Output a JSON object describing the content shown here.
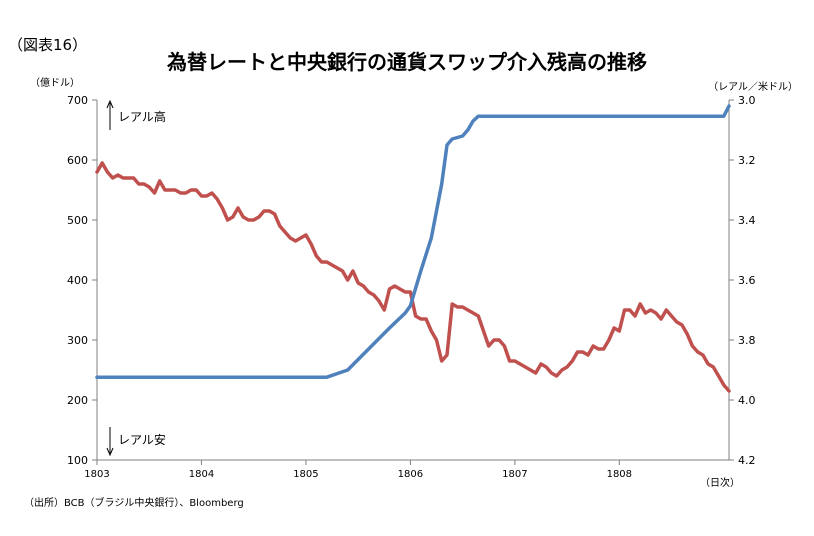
{
  "figure_label": "（図表16）",
  "source_note": "（出所）BCB（ブラジル中央銀行）、Bloomberg",
  "chart_data": {
    "type": "line",
    "title": "為替レートと中央銀行の通貨スワップ介入残高の推移",
    "y_left_unit": "（億ドル）",
    "y_right_unit": "（レアル／米ドル）",
    "x_unit": "（日次）",
    "x_ticks": [
      "1803",
      "1804",
      "1805",
      "1806",
      "1807",
      "1808"
    ],
    "y_left_ticks": [
      "700",
      "600",
      "500",
      "400",
      "300",
      "200",
      "100"
    ],
    "y_right_ticks": [
      "3.0",
      "3.2",
      "3.4",
      "3.6",
      "3.8",
      "4.0",
      "4.2"
    ],
    "ylim_left": [
      100,
      700
    ],
    "ylim_right": [
      3.0,
      4.2
    ],
    "right_axis_inverted": true,
    "annotation_up": "レアル高",
    "annotation_down": "レアル安",
    "legend": "none",
    "grid": false,
    "colors": {
      "swap": "#4f81bd",
      "fx": "#c0504d",
      "axis": "#808080"
    },
    "series": [
      {
        "axis": "left",
        "color": "#4f81bd",
        "x": [
          0,
          2.1,
          2.2,
          2.4,
          2.6,
          2.8,
          2.95,
          3.0,
          3.1,
          3.2,
          3.3,
          3.35,
          3.4,
          3.5,
          3.55,
          3.6,
          3.65,
          3.7,
          3.75,
          3.8,
          6.0,
          6.05
        ],
        "values": [
          238,
          238,
          238,
          250,
          285,
          320,
          345,
          357,
          415,
          470,
          560,
          625,
          635,
          640,
          650,
          665,
          673,
          673,
          673,
          673,
          673,
          690
        ]
      },
      {
        "axis": "right",
        "color": "#c0504d",
        "x": [
          0,
          0.05,
          0.1,
          0.15,
          0.2,
          0.25,
          0.3,
          0.35,
          0.4,
          0.45,
          0.5,
          0.55,
          0.6,
          0.65,
          0.7,
          0.75,
          0.8,
          0.85,
          0.9,
          0.95,
          1.0,
          1.05,
          1.1,
          1.15,
          1.2,
          1.25,
          1.3,
          1.35,
          1.4,
          1.45,
          1.5,
          1.55,
          1.6,
          1.65,
          1.7,
          1.75,
          1.8,
          1.85,
          1.9,
          1.95,
          2.0,
          2.05,
          2.1,
          2.15,
          2.2,
          2.25,
          2.3,
          2.35,
          2.4,
          2.45,
          2.5,
          2.55,
          2.6,
          2.65,
          2.7,
          2.75,
          2.8,
          2.85,
          2.9,
          2.95,
          3.0,
          3.05,
          3.1,
          3.15,
          3.2,
          3.25,
          3.3,
          3.35,
          3.4,
          3.45,
          3.5,
          3.55,
          3.6,
          3.65,
          3.7,
          3.75,
          3.8,
          3.85,
          3.9,
          3.95,
          4.0,
          4.05,
          4.1,
          4.15,
          4.2,
          4.25,
          4.3,
          4.35,
          4.4,
          4.45,
          4.5,
          4.55,
          4.6,
          4.65,
          4.7,
          4.75,
          4.8,
          4.85,
          4.9,
          4.95,
          5.0,
          5.05,
          5.1,
          5.15,
          5.2,
          5.25,
          5.3,
          5.35,
          5.4,
          5.45,
          5.5,
          5.55,
          5.6,
          5.65,
          5.7,
          5.75,
          5.8,
          5.85,
          5.9,
          5.95,
          6.0,
          6.05
        ],
        "values": [
          3.24,
          3.21,
          3.24,
          3.26,
          3.25,
          3.26,
          3.26,
          3.26,
          3.28,
          3.28,
          3.29,
          3.31,
          3.27,
          3.3,
          3.3,
          3.3,
          3.31,
          3.31,
          3.3,
          3.3,
          3.32,
          3.32,
          3.31,
          3.33,
          3.36,
          3.4,
          3.39,
          3.36,
          3.39,
          3.4,
          3.4,
          3.39,
          3.37,
          3.37,
          3.38,
          3.42,
          3.44,
          3.46,
          3.47,
          3.46,
          3.45,
          3.48,
          3.52,
          3.54,
          3.54,
          3.55,
          3.56,
          3.57,
          3.6,
          3.57,
          3.61,
          3.62,
          3.64,
          3.65,
          3.67,
          3.7,
          3.63,
          3.62,
          3.63,
          3.64,
          3.64,
          3.72,
          3.73,
          3.73,
          3.77,
          3.8,
          3.87,
          3.85,
          3.68,
          3.69,
          3.69,
          3.7,
          3.71,
          3.72,
          3.77,
          3.82,
          3.8,
          3.8,
          3.82,
          3.87,
          3.87,
          3.88,
          3.89,
          3.9,
          3.91,
          3.88,
          3.89,
          3.91,
          3.92,
          3.9,
          3.89,
          3.87,
          3.84,
          3.84,
          3.85,
          3.82,
          3.83,
          3.83,
          3.8,
          3.76,
          3.77,
          3.7,
          3.7,
          3.72,
          3.68,
          3.71,
          3.7,
          3.71,
          3.73,
          3.7,
          3.72,
          3.74,
          3.75,
          3.78,
          3.82,
          3.84,
          3.85,
          3.88,
          3.89,
          3.92,
          3.95,
          3.97
        ]
      }
    ]
  }
}
